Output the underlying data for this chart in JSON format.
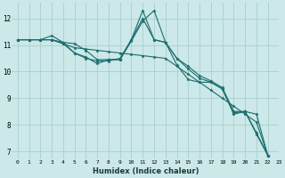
{
  "xlabel": "Humidex (Indice chaleur)",
  "background_color": "#cce8e8",
  "grid_color": "#aacece",
  "line_color": "#1a6e6e",
  "xlim": [
    -0.5,
    23
  ],
  "ylim": [
    6.7,
    12.6
  ],
  "yticks": [
    7,
    8,
    9,
    10,
    11,
    12
  ],
  "xticks": [
    0,
    1,
    2,
    3,
    4,
    5,
    6,
    7,
    8,
    9,
    10,
    11,
    12,
    13,
    14,
    15,
    16,
    17,
    18,
    19,
    20,
    21,
    22,
    23
  ],
  "lines": [
    [
      11.2,
      11.2,
      11.2,
      11.2,
      11.1,
      11.05,
      10.8,
      10.45,
      10.45,
      10.45,
      11.15,
      11.9,
      12.3,
      11.1,
      10.5,
      10.1,
      9.75,
      9.6,
      9.35,
      8.4,
      8.5,
      7.65,
      6.85,
      null
    ],
    [
      11.2,
      11.2,
      11.2,
      11.35,
      11.1,
      10.7,
      10.55,
      10.3,
      10.45,
      10.45,
      11.2,
      12.0,
      11.2,
      11.1,
      10.25,
      9.7,
      9.6,
      9.6,
      9.35,
      8.45,
      8.5,
      8.4,
      6.85,
      null
    ],
    [
      11.2,
      11.2,
      11.2,
      11.2,
      11.05,
      10.7,
      10.5,
      10.4,
      10.4,
      10.5,
      11.2,
      12.3,
      11.2,
      11.1,
      10.5,
      10.2,
      9.85,
      9.65,
      9.4,
      8.5,
      8.5,
      7.7,
      6.85,
      null
    ],
    [
      11.2,
      11.2,
      11.2,
      11.2,
      11.05,
      10.9,
      10.85,
      10.8,
      10.75,
      10.7,
      10.65,
      10.6,
      10.55,
      10.5,
      10.2,
      9.9,
      9.6,
      9.3,
      9.0,
      8.7,
      8.4,
      8.1,
      6.85,
      null
    ]
  ]
}
